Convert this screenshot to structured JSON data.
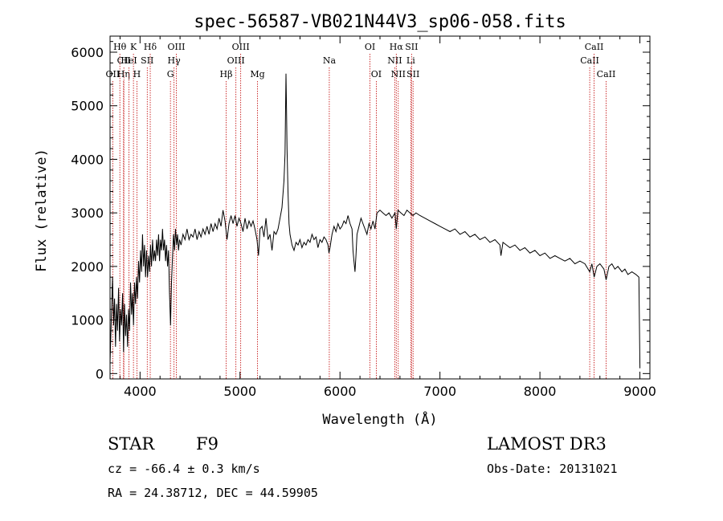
{
  "chart_data": {
    "type": "line",
    "title": "spec-56587-VB021N44V3_sp06-058.fits",
    "xlabel": "Wavelength (Å)",
    "ylabel": "Flux (relative)",
    "xlim": [
      3700,
      9100
    ],
    "ylim": [
      -100,
      6300
    ],
    "x_ticks": [
      4000,
      5000,
      6000,
      7000,
      8000,
      9000
    ],
    "y_ticks": [
      0,
      1000,
      2000,
      3000,
      4000,
      5000,
      6000
    ],
    "x_tick_labels": [
      "4000",
      "5000",
      "6000",
      "7000",
      "8000",
      "9000"
    ],
    "y_tick_labels": [
      "0",
      "1000",
      "2000",
      "3000",
      "4000",
      "5000",
      "6000"
    ],
    "grid": false,
    "series": [
      {
        "name": "spectrum",
        "points": [
          [
            3700,
            200
          ],
          [
            3715,
            1200
          ],
          [
            3725,
            1800
          ],
          [
            3735,
            900
          ],
          [
            3745,
            1400
          ],
          [
            3755,
            500
          ],
          [
            3765,
            1300
          ],
          [
            3775,
            800
          ],
          [
            3785,
            1600
          ],
          [
            3795,
            600
          ],
          [
            3805,
            1200
          ],
          [
            3815,
            900
          ],
          [
            3825,
            1500
          ],
          [
            3835,
            400
          ],
          [
            3845,
            1300
          ],
          [
            3855,
            700
          ],
          [
            3865,
            1100
          ],
          [
            3875,
            500
          ],
          [
            3885,
            1200
          ],
          [
            3895,
            800
          ],
          [
            3905,
            1700
          ],
          [
            3915,
            1100
          ],
          [
            3925,
            1500
          ],
          [
            3935,
            900
          ],
          [
            3945,
            1700
          ],
          [
            3955,
            1300
          ],
          [
            3965,
            1800
          ],
          [
            3975,
            1400
          ],
          [
            3985,
            2100
          ],
          [
            3995,
            1700
          ],
          [
            4005,
            2300
          ],
          [
            4015,
            1900
          ],
          [
            4025,
            2600
          ],
          [
            4035,
            2000
          ],
          [
            4045,
            2400
          ],
          [
            4055,
            1800
          ],
          [
            4065,
            2300
          ],
          [
            4075,
            1800
          ],
          [
            4085,
            2200
          ],
          [
            4095,
            1900
          ],
          [
            4105,
            2400
          ],
          [
            4115,
            2000
          ],
          [
            4125,
            2500
          ],
          [
            4135,
            2100
          ],
          [
            4145,
            2300
          ],
          [
            4155,
            2100
          ],
          [
            4165,
            2500
          ],
          [
            4175,
            2200
          ],
          [
            4185,
            2600
          ],
          [
            4195,
            2100
          ],
          [
            4205,
            2500
          ],
          [
            4215,
            2300
          ],
          [
            4225,
            2700
          ],
          [
            4235,
            2300
          ],
          [
            4245,
            2500
          ],
          [
            4255,
            2100
          ],
          [
            4265,
            2400
          ],
          [
            4275,
            2000
          ],
          [
            4285,
            2300
          ],
          [
            4295,
            1500
          ],
          [
            4305,
            900
          ],
          [
            4315,
            1700
          ],
          [
            4325,
            2200
          ],
          [
            4335,
            2600
          ],
          [
            4345,
            2300
          ],
          [
            4355,
            2700
          ],
          [
            4365,
            2400
          ],
          [
            4375,
            2600
          ],
          [
            4385,
            2300
          ],
          [
            4395,
            2500
          ],
          [
            4410,
            2400
          ],
          [
            4430,
            2600
          ],
          [
            4450,
            2500
          ],
          [
            4470,
            2700
          ],
          [
            4490,
            2500
          ],
          [
            4510,
            2600
          ],
          [
            4530,
            2550
          ],
          [
            4550,
            2700
          ],
          [
            4570,
            2500
          ],
          [
            4590,
            2650
          ],
          [
            4610,
            2550
          ],
          [
            4630,
            2700
          ],
          [
            4650,
            2600
          ],
          [
            4670,
            2750
          ],
          [
            4690,
            2600
          ],
          [
            4710,
            2800
          ],
          [
            4730,
            2650
          ],
          [
            4750,
            2800
          ],
          [
            4770,
            2700
          ],
          [
            4790,
            2900
          ],
          [
            4810,
            2750
          ],
          [
            4830,
            3050
          ],
          [
            4850,
            2850
          ],
          [
            4870,
            2500
          ],
          [
            4890,
            2800
          ],
          [
            4910,
            2950
          ],
          [
            4930,
            2800
          ],
          [
            4950,
            2950
          ],
          [
            4970,
            2750
          ],
          [
            4990,
            2900
          ],
          [
            5010,
            2800
          ],
          [
            5030,
            2650
          ],
          [
            5050,
            2900
          ],
          [
            5070,
            2700
          ],
          [
            5090,
            2850
          ],
          [
            5110,
            2750
          ],
          [
            5130,
            2850
          ],
          [
            5150,
            2700
          ],
          [
            5170,
            2500
          ],
          [
            5185,
            2200
          ],
          [
            5200,
            2700
          ],
          [
            5220,
            2750
          ],
          [
            5240,
            2550
          ],
          [
            5260,
            2900
          ],
          [
            5280,
            2500
          ],
          [
            5300,
            2600
          ],
          [
            5320,
            2300
          ],
          [
            5340,
            2650
          ],
          [
            5360,
            2600
          ],
          [
            5380,
            2700
          ],
          [
            5400,
            2900
          ],
          [
            5420,
            3100
          ],
          [
            5440,
            3600
          ],
          [
            5450,
            4100
          ],
          [
            5460,
            5600
          ],
          [
            5465,
            5000
          ],
          [
            5470,
            4200
          ],
          [
            5480,
            3400
          ],
          [
            5490,
            2800
          ],
          [
            5500,
            2600
          ],
          [
            5520,
            2400
          ],
          [
            5540,
            2300
          ],
          [
            5560,
            2450
          ],
          [
            5580,
            2400
          ],
          [
            5600,
            2500
          ],
          [
            5620,
            2350
          ],
          [
            5640,
            2450
          ],
          [
            5660,
            2400
          ],
          [
            5680,
            2500
          ],
          [
            5700,
            2450
          ],
          [
            5720,
            2600
          ],
          [
            5740,
            2500
          ],
          [
            5760,
            2550
          ],
          [
            5780,
            2350
          ],
          [
            5800,
            2500
          ],
          [
            5820,
            2450
          ],
          [
            5840,
            2550
          ],
          [
            5860,
            2500
          ],
          [
            5880,
            2400
          ],
          [
            5890,
            2250
          ],
          [
            5900,
            2350
          ],
          [
            5920,
            2600
          ],
          [
            5940,
            2750
          ],
          [
            5960,
            2650
          ],
          [
            5980,
            2800
          ],
          [
            6000,
            2700
          ],
          [
            6020,
            2750
          ],
          [
            6040,
            2850
          ],
          [
            6060,
            2800
          ],
          [
            6080,
            2950
          ],
          [
            6100,
            2800
          ],
          [
            6120,
            2700
          ],
          [
            6130,
            2300
          ],
          [
            6140,
            2100
          ],
          [
            6150,
            1900
          ],
          [
            6160,
            2200
          ],
          [
            6170,
            2600
          ],
          [
            6190,
            2750
          ],
          [
            6210,
            2900
          ],
          [
            6230,
            2800
          ],
          [
            6250,
            2700
          ],
          [
            6270,
            2600
          ],
          [
            6290,
            2800
          ],
          [
            6310,
            2700
          ],
          [
            6330,
            2850
          ],
          [
            6350,
            2700
          ],
          [
            6370,
            3000
          ],
          [
            6400,
            3050
          ],
          [
            6430,
            3000
          ],
          [
            6460,
            2950
          ],
          [
            6490,
            3000
          ],
          [
            6520,
            2900
          ],
          [
            6550,
            3000
          ],
          [
            6563,
            2700
          ],
          [
            6580,
            3050
          ],
          [
            6610,
            3000
          ],
          [
            6640,
            2950
          ],
          [
            6670,
            3050
          ],
          [
            6700,
            3000
          ],
          [
            6730,
            2950
          ],
          [
            6760,
            3000
          ],
          [
            6800,
            2950
          ],
          [
            6850,
            2900
          ],
          [
            6900,
            2850
          ],
          [
            6950,
            2800
          ],
          [
            7000,
            2750
          ],
          [
            7050,
            2700
          ],
          [
            7100,
            2650
          ],
          [
            7150,
            2700
          ],
          [
            7200,
            2600
          ],
          [
            7250,
            2650
          ],
          [
            7300,
            2550
          ],
          [
            7350,
            2600
          ],
          [
            7400,
            2500
          ],
          [
            7450,
            2550
          ],
          [
            7500,
            2450
          ],
          [
            7550,
            2500
          ],
          [
            7600,
            2400
          ],
          [
            7610,
            2200
          ],
          [
            7630,
            2450
          ],
          [
            7700,
            2350
          ],
          [
            7750,
            2400
          ],
          [
            7800,
            2300
          ],
          [
            7850,
            2350
          ],
          [
            7900,
            2250
          ],
          [
            7950,
            2300
          ],
          [
            8000,
            2200
          ],
          [
            8050,
            2250
          ],
          [
            8100,
            2150
          ],
          [
            8150,
            2200
          ],
          [
            8200,
            2150
          ],
          [
            8250,
            2100
          ],
          [
            8300,
            2150
          ],
          [
            8350,
            2050
          ],
          [
            8400,
            2100
          ],
          [
            8450,
            2050
          ],
          [
            8498,
            1900
          ],
          [
            8520,
            2050
          ],
          [
            8542,
            1800
          ],
          [
            8570,
            2000
          ],
          [
            8600,
            2050
          ],
          [
            8640,
            1950
          ],
          [
            8662,
            1750
          ],
          [
            8690,
            2000
          ],
          [
            8720,
            2050
          ],
          [
            8750,
            1950
          ],
          [
            8780,
            2000
          ],
          [
            8820,
            1900
          ],
          [
            8850,
            1950
          ],
          [
            8880,
            1850
          ],
          [
            8920,
            1900
          ],
          [
            8960,
            1850
          ],
          [
            8990,
            1800
          ],
          [
            9000,
            100
          ]
        ]
      }
    ],
    "annotations": [
      {
        "label": "Hθ",
        "wavelength": 3798,
        "row": 1
      },
      {
        "label": "CII",
        "wavelength": 3838,
        "row": 2
      },
      {
        "label": "OII",
        "wavelength": 3727,
        "row": 3
      },
      {
        "label": "Hη",
        "wavelength": 3835,
        "row": 3
      },
      {
        "label": "HeI",
        "wavelength": 3889,
        "row": 2
      },
      {
        "label": "K",
        "wavelength": 3934,
        "row": 1
      },
      {
        "label": "H",
        "wavelength": 3969,
        "row": 3
      },
      {
        "label": "SII",
        "wavelength": 4072,
        "row": 2
      },
      {
        "label": "Hδ",
        "wavelength": 4102,
        "row": 1
      },
      {
        "label": "G",
        "wavelength": 4304,
        "row": 3
      },
      {
        "label": "OIII",
        "wavelength": 4363,
        "row": 1
      },
      {
        "label": "Hγ",
        "wavelength": 4340,
        "row": 2
      },
      {
        "label": "Hβ",
        "wavelength": 4861,
        "row": 3
      },
      {
        "label": "OIII",
        "wavelength": 4959,
        "row": 2
      },
      {
        "label": "OIII",
        "wavelength": 5007,
        "row": 1
      },
      {
        "label": "Mg",
        "wavelength": 5175,
        "row": 3
      },
      {
        "label": "Na",
        "wavelength": 5893,
        "row": 2
      },
      {
        "label": "OI",
        "wavelength": 6300,
        "row": 1
      },
      {
        "label": "OI",
        "wavelength": 6363,
        "row": 3
      },
      {
        "label": "NII",
        "wavelength": 6548,
        "row": 2
      },
      {
        "label": "Hα",
        "wavelength": 6563,
        "row": 1
      },
      {
        "label": "NII",
        "wavelength": 6583,
        "row": 3
      },
      {
        "label": "Li",
        "wavelength": 6708,
        "row": 2
      },
      {
        "label": "SII",
        "wavelength": 6716,
        "row": 1
      },
      {
        "label": "SII",
        "wavelength": 6731,
        "row": 3
      },
      {
        "label": "CaII",
        "wavelength": 8498,
        "row": 2
      },
      {
        "label": "CaII",
        "wavelength": 8542,
        "row": 1
      },
      {
        "label": "CaII",
        "wavelength": 8662,
        "row": 3
      }
    ]
  },
  "info": {
    "object_class": "STAR",
    "subclass": "F9",
    "survey": "LAMOST DR3",
    "cz": "cz = -66.4 ± 0.3 km/s",
    "obs_date": "Obs-Date: 20131021",
    "coords": "RA =  24.38712, DEC =  44.59905"
  }
}
